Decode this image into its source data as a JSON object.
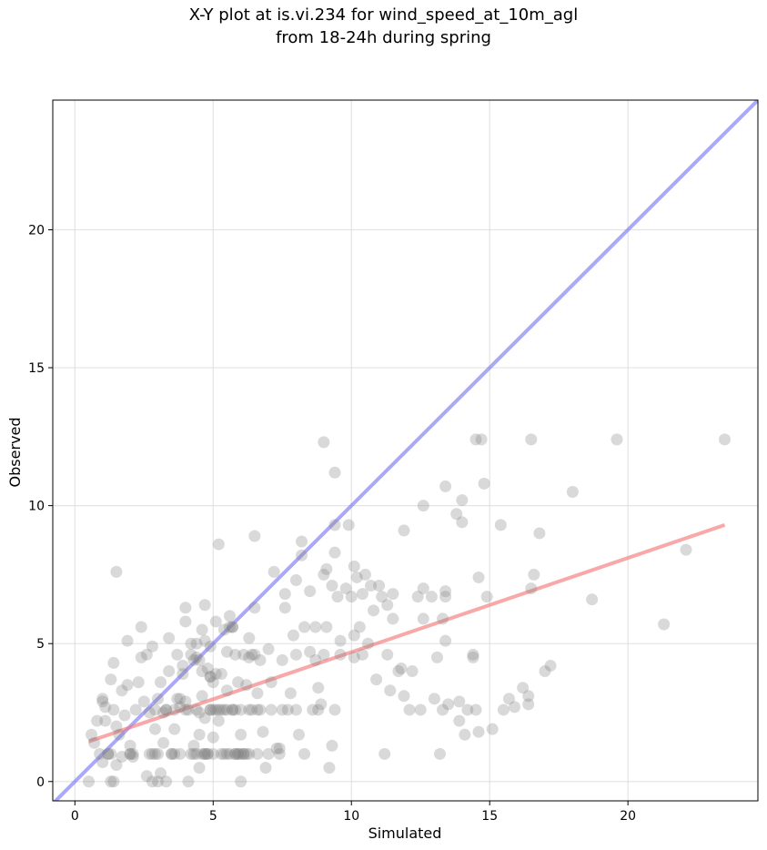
{
  "chart_data": {
    "type": "scatter",
    "title_line1": "X-Y plot at is.vi.234 for wind_speed_at_10m_agl",
    "title_line2": "from 18-24h during spring",
    "xlabel": "Simulated",
    "ylabel": "Observed",
    "xlim": [
      -0.8,
      24.7
    ],
    "ylim": [
      -0.7,
      24.7
    ],
    "xticks": [
      0,
      5,
      10,
      15,
      20
    ],
    "yticks": [
      0,
      5,
      10,
      15,
      20
    ],
    "grid": true,
    "point_color": "#808080",
    "identity_line_color": "#7b7bf5",
    "fit_line_color": "#f47a7a",
    "identity_line": {
      "x": [
        -0.8,
        24.7
      ],
      "y": [
        -0.8,
        24.7
      ]
    },
    "fit_line": {
      "x": [
        0.5,
        23.5
      ],
      "y": [
        1.45,
        9.3
      ]
    },
    "points": [
      [
        0.5,
        0
      ],
      [
        0.6,
        1.7
      ],
      [
        0.7,
        1.4
      ],
      [
        0.8,
        2.2
      ],
      [
        0.9,
        1.0
      ],
      [
        1.0,
        3.0
      ],
      [
        1.0,
        2.9
      ],
      [
        1.0,
        0.7
      ],
      [
        1.1,
        2.2
      ],
      [
        1.1,
        2.7
      ],
      [
        1.2,
        1.0
      ],
      [
        1.3,
        1.0
      ],
      [
        1.3,
        0
      ],
      [
        1.3,
        3.7
      ],
      [
        1.4,
        2.6
      ],
      [
        1.4,
        4.3
      ],
      [
        1.4,
        0
      ],
      [
        1.5,
        7.6
      ],
      [
        1.5,
        2.0
      ],
      [
        1.5,
        0.6
      ],
      [
        1.6,
        1.7
      ],
      [
        1.7,
        3.3
      ],
      [
        1.7,
        0.9
      ],
      [
        1.8,
        2.4
      ],
      [
        1.9,
        5.1
      ],
      [
        1.9,
        3.5
      ],
      [
        2.0,
        1.0
      ],
      [
        2.0,
        1.3
      ],
      [
        2.1,
        0.9
      ],
      [
        2.2,
        2.6
      ],
      [
        2.3,
        3.6
      ],
      [
        2.4,
        5.6
      ],
      [
        2.4,
        4.5
      ],
      [
        2.5,
        2.9
      ],
      [
        2.6,
        0.2
      ],
      [
        2.6,
        4.6
      ],
      [
        2.7,
        2.5
      ],
      [
        2.8,
        4.9
      ],
      [
        2.8,
        0
      ],
      [
        2.9,
        1.9
      ],
      [
        2.9,
        1.0
      ],
      [
        3.0,
        3.0
      ],
      [
        3.0,
        0
      ],
      [
        3.1,
        0.3
      ],
      [
        3.1,
        3.6
      ],
      [
        3.2,
        2.5
      ],
      [
        3.2,
        1.4
      ],
      [
        3.3,
        2.6
      ],
      [
        3.3,
        0
      ],
      [
        3.4,
        4.0
      ],
      [
        3.4,
        5.2
      ],
      [
        3.5,
        1.0
      ],
      [
        3.6,
        2.6
      ],
      [
        3.6,
        1.9
      ],
      [
        3.7,
        3.0
      ],
      [
        3.7,
        4.6
      ],
      [
        3.8,
        1.0
      ],
      [
        3.8,
        2.7
      ],
      [
        3.9,
        4.2
      ],
      [
        3.9,
        3.9
      ],
      [
        4.0,
        6.3
      ],
      [
        4.0,
        2.9
      ],
      [
        4.1,
        2.6
      ],
      [
        4.1,
        0
      ],
      [
        4.2,
        5.0
      ],
      [
        4.2,
        1.0
      ],
      [
        4.3,
        1.3
      ],
      [
        4.3,
        4.4
      ],
      [
        4.4,
        2.6
      ],
      [
        4.4,
        4.5
      ],
      [
        4.5,
        0.5
      ],
      [
        4.5,
        1.7
      ],
      [
        4.6,
        3.1
      ],
      [
        4.6,
        5.5
      ],
      [
        4.7,
        2.3
      ],
      [
        4.7,
        6.4
      ],
      [
        4.7,
        1.0
      ],
      [
        4.8,
        1.0
      ],
      [
        4.8,
        4.1
      ],
      [
        4.9,
        3.8
      ],
      [
        4.9,
        2.6
      ],
      [
        5.0,
        1.6
      ],
      [
        5.0,
        3.6
      ],
      [
        5.0,
        1.0
      ],
      [
        5.1,
        2.6
      ],
      [
        5.1,
        5.8
      ],
      [
        5.2,
        8.6
      ],
      [
        5.2,
        2.2
      ],
      [
        5.3,
        3.9
      ],
      [
        5.3,
        1.0
      ],
      [
        5.4,
        5.5
      ],
      [
        5.4,
        2.6
      ],
      [
        5.5,
        3.3
      ],
      [
        5.5,
        4.7
      ],
      [
        5.6,
        1.0
      ],
      [
        5.6,
        6.0
      ],
      [
        5.7,
        2.6
      ],
      [
        5.7,
        5.6
      ],
      [
        5.8,
        1.0
      ],
      [
        5.9,
        3.6
      ],
      [
        5.9,
        1.0
      ],
      [
        6.0,
        2.6
      ],
      [
        6.0,
        0
      ],
      [
        6.0,
        1.7
      ],
      [
        6.1,
        4.6
      ],
      [
        6.1,
        1.0
      ],
      [
        6.2,
        3.5
      ],
      [
        6.2,
        1.0
      ],
      [
        6.3,
        5.2
      ],
      [
        6.3,
        2.6
      ],
      [
        6.4,
        4.6
      ],
      [
        6.5,
        8.9
      ],
      [
        6.5,
        6.3
      ],
      [
        6.6,
        3.2
      ],
      [
        6.6,
        1.0
      ],
      [
        6.7,
        2.6
      ],
      [
        6.7,
        4.4
      ],
      [
        6.8,
        1.8
      ],
      [
        6.9,
        0.5
      ],
      [
        7.0,
        4.8
      ],
      [
        7.0,
        1.0
      ],
      [
        7.1,
        2.6
      ],
      [
        7.1,
        3.6
      ],
      [
        7.2,
        7.6
      ],
      [
        7.3,
        1.2
      ],
      [
        7.4,
        1.2
      ],
      [
        7.5,
        4.4
      ],
      [
        7.6,
        6.3
      ],
      [
        7.6,
        6.8
      ],
      [
        7.7,
        2.6
      ],
      [
        7.8,
        3.2
      ],
      [
        7.9,
        5.3
      ],
      [
        8.0,
        2.6
      ],
      [
        8.0,
        4.6
      ],
      [
        8.0,
        7.3
      ],
      [
        8.1,
        1.7
      ],
      [
        8.2,
        8.7
      ],
      [
        8.2,
        8.2
      ],
      [
        8.3,
        5.6
      ],
      [
        8.3,
        1.0
      ],
      [
        8.5,
        6.9
      ],
      [
        8.5,
        4.7
      ],
      [
        8.6,
        2.6
      ],
      [
        8.7,
        5.6
      ],
      [
        8.7,
        4.4
      ],
      [
        8.8,
        3.4
      ],
      [
        8.8,
        2.6
      ],
      [
        8.9,
        2.8
      ],
      [
        9.0,
        12.3
      ],
      [
        9.0,
        7.5
      ],
      [
        9.0,
        4.6
      ],
      [
        9.1,
        5.6
      ],
      [
        9.1,
        7.7
      ],
      [
        9.2,
        0.5
      ],
      [
        9.3,
        7.1
      ],
      [
        9.3,
        1.3
      ],
      [
        9.4,
        2.6
      ],
      [
        9.4,
        11.2
      ],
      [
        9.4,
        9.3
      ],
      [
        9.4,
        8.3
      ],
      [
        9.5,
        6.7
      ],
      [
        9.6,
        5.1
      ],
      [
        9.6,
        4.6
      ],
      [
        9.8,
        7.0
      ],
      [
        9.9,
        9.3
      ],
      [
        10.0,
        6.7
      ],
      [
        10.1,
        7.8
      ],
      [
        10.1,
        4.5
      ],
      [
        10.1,
        5.3
      ],
      [
        10.2,
        7.4
      ],
      [
        10.3,
        5.6
      ],
      [
        10.4,
        4.6
      ],
      [
        10.4,
        6.8
      ],
      [
        10.5,
        7.5
      ],
      [
        10.6,
        5.0
      ],
      [
        10.7,
        7.1
      ],
      [
        10.8,
        6.2
      ],
      [
        10.9,
        3.7
      ],
      [
        11.0,
        7.1
      ],
      [
        11.1,
        6.7
      ],
      [
        11.2,
        1.0
      ],
      [
        11.3,
        6.4
      ],
      [
        11.3,
        4.6
      ],
      [
        11.4,
        3.3
      ],
      [
        11.5,
        5.9
      ],
      [
        11.5,
        6.8
      ],
      [
        11.7,
        4.0
      ],
      [
        11.8,
        4.1
      ],
      [
        11.9,
        9.1
      ],
      [
        11.9,
        3.1
      ],
      [
        12.1,
        2.6
      ],
      [
        12.2,
        4.0
      ],
      [
        12.4,
        6.7
      ],
      [
        12.5,
        2.6
      ],
      [
        12.6,
        10.0
      ],
      [
        12.6,
        7.0
      ],
      [
        12.6,
        5.9
      ],
      [
        12.9,
        6.7
      ],
      [
        13.0,
        3.0
      ],
      [
        13.1,
        4.5
      ],
      [
        13.2,
        1.0
      ],
      [
        13.3,
        5.9
      ],
      [
        13.3,
        2.6
      ],
      [
        13.4,
        5.1
      ],
      [
        13.4,
        10.7
      ],
      [
        13.4,
        6.9
      ],
      [
        13.4,
        6.7
      ],
      [
        13.5,
        2.8
      ],
      [
        13.8,
        9.7
      ],
      [
        13.9,
        2.9
      ],
      [
        13.9,
        2.2
      ],
      [
        14.0,
        10.2
      ],
      [
        14.0,
        9.4
      ],
      [
        14.1,
        1.7
      ],
      [
        14.2,
        2.6
      ],
      [
        14.4,
        4.6
      ],
      [
        14.4,
        4.5
      ],
      [
        14.5,
        12.4
      ],
      [
        14.5,
        2.6
      ],
      [
        14.6,
        7.4
      ],
      [
        14.6,
        1.8
      ],
      [
        14.7,
        12.4
      ],
      [
        14.8,
        10.8
      ],
      [
        14.9,
        6.7
      ],
      [
        15.1,
        1.9
      ],
      [
        15.4,
        9.3
      ],
      [
        15.5,
        2.6
      ],
      [
        15.7,
        3.0
      ],
      [
        15.9,
        2.7
      ],
      [
        16.2,
        3.4
      ],
      [
        16.4,
        3.1
      ],
      [
        16.4,
        2.8
      ],
      [
        16.5,
        12.4
      ],
      [
        16.5,
        7.0
      ],
      [
        16.6,
        7.5
      ],
      [
        16.8,
        9.0
      ],
      [
        17.0,
        4.0
      ],
      [
        17.2,
        4.2
      ],
      [
        18.0,
        10.5
      ],
      [
        18.7,
        6.6
      ],
      [
        19.6,
        12.4
      ],
      [
        21.3,
        5.7
      ],
      [
        22.1,
        8.4
      ],
      [
        23.5,
        12.4
      ],
      [
        4.6,
        1.0
      ],
      [
        4.7,
        1.0
      ],
      [
        4.8,
        1.0
      ],
      [
        5.8,
        1.0
      ],
      [
        5.9,
        1.0
      ],
      [
        6.0,
        1.0
      ],
      [
        3.6,
        1.0
      ],
      [
        3.5,
        1.0
      ],
      [
        4.5,
        2.5
      ],
      [
        5.0,
        2.6
      ],
      [
        5.5,
        2.6
      ],
      [
        5.2,
        2.6
      ],
      [
        5.7,
        2.6
      ],
      [
        4.9,
        2.6
      ],
      [
        5.3,
        2.6
      ],
      [
        5.8,
        2.6
      ],
      [
        4.0,
        2.6
      ],
      [
        3.3,
        2.6
      ],
      [
        2.9,
        2.6
      ],
      [
        3.0,
        1.0
      ],
      [
        2.7,
        1.0
      ],
      [
        2.8,
        1.0
      ],
      [
        4.3,
        1.0
      ],
      [
        4.4,
        1.0
      ],
      [
        1.2,
        1.0
      ],
      [
        5.5,
        1.0
      ],
      [
        5.4,
        1.0
      ],
      [
        5.6,
        5.6
      ],
      [
        5.7,
        5.6
      ],
      [
        4.6,
        4.0
      ],
      [
        4.5,
        4.4
      ],
      [
        4.9,
        3.8
      ],
      [
        5.1,
        3.9
      ],
      [
        4.2,
        4.6
      ],
      [
        4.4,
        5.0
      ],
      [
        3.8,
        3.0
      ],
      [
        4.0,
        5.8
      ],
      [
        4.7,
        5.1
      ],
      [
        4.9,
        4.9
      ],
      [
        5.8,
        4.6
      ],
      [
        6.3,
        4.5
      ],
      [
        6.5,
        4.6
      ],
      [
        2.0,
        1.0
      ],
      [
        2.1,
        1.0
      ],
      [
        6.1,
        1.0
      ],
      [
        6.3,
        1.0
      ],
      [
        6.6,
        2.6
      ],
      [
        6.4,
        2.6
      ],
      [
        7.5,
        2.6
      ],
      [
        7.4,
        1.0
      ]
    ]
  }
}
